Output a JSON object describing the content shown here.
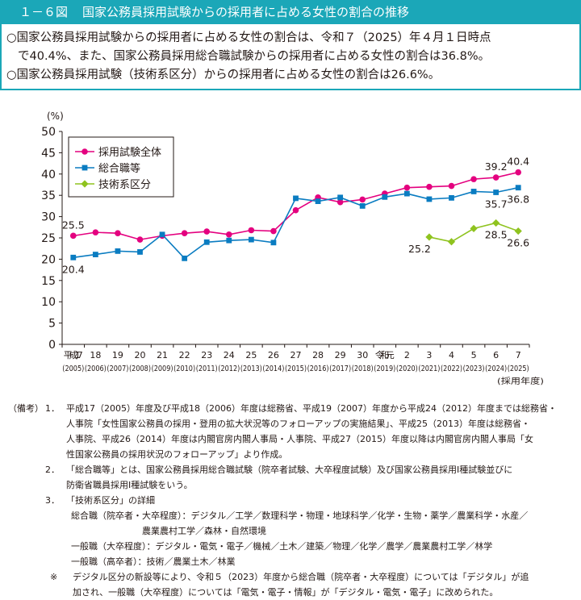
{
  "header": {
    "figure_number": "１－６図",
    "title": "国家公務員採用試験からの採用者に占める女性の割合の推移"
  },
  "summary": {
    "line1": "○国家公務員採用試験からの採用者に占める女性の割合は、令和７（2025）年４月１日時点",
    "line2": "で40.4%、また、国家公務員採用総合職試験からの採用者に占める女性の割合は36.8%。",
    "line3": "○国家公務員採用試験（技術系区分）からの採用者に占める女性の割合は26.6%。"
  },
  "chart_data": {
    "type": "line",
    "y_unit": "(%)",
    "ylim": [
      0,
      50
    ],
    "yticks": [
      0,
      5,
      10,
      15,
      20,
      25,
      30,
      35,
      40,
      45,
      50
    ],
    "x_label": "(採用年度)",
    "categories": [
      {
        "era": "平成17",
        "year": "(2005)"
      },
      {
        "era": "18",
        "year": "(2006)"
      },
      {
        "era": "19",
        "year": "(2007)"
      },
      {
        "era": "20",
        "year": "(2008)"
      },
      {
        "era": "21",
        "year": "(2009)"
      },
      {
        "era": "22",
        "year": "(2010)"
      },
      {
        "era": "23",
        "year": "(2011)"
      },
      {
        "era": "24",
        "year": "(2012)"
      },
      {
        "era": "25",
        "year": "(2013)"
      },
      {
        "era": "26",
        "year": "(2014)"
      },
      {
        "era": "27",
        "year": "(2015)"
      },
      {
        "era": "28",
        "year": "(2016)"
      },
      {
        "era": "29",
        "year": "(2017)"
      },
      {
        "era": "30",
        "year": "(2018)"
      },
      {
        "era": "令和元",
        "year": "(2019)"
      },
      {
        "era": "2",
        "year": "(2020)"
      },
      {
        "era": "3",
        "year": "(2021)"
      },
      {
        "era": "4",
        "year": "(2022)"
      },
      {
        "era": "5",
        "year": "(2023)"
      },
      {
        "era": "6",
        "year": "(2024)"
      },
      {
        "era": "7",
        "year": "(2025)"
      }
    ],
    "series": [
      {
        "name": "採用試験全体",
        "color": "#e4007f",
        "marker": "circle",
        "values": [
          25.5,
          26.3,
          26.1,
          24.6,
          25.5,
          26.1,
          26.5,
          25.8,
          26.8,
          26.6,
          31.5,
          34.5,
          33.4,
          34.0,
          35.4,
          36.8,
          37.0,
          37.2,
          38.8,
          39.2,
          40.4
        ]
      },
      {
        "name": "総合職等",
        "color": "#0a7cc1",
        "marker": "square",
        "values": [
          20.4,
          21.1,
          21.9,
          21.7,
          25.8,
          20.2,
          24.0,
          24.4,
          24.6,
          23.9,
          34.3,
          33.6,
          34.5,
          32.5,
          34.6,
          35.4,
          34.1,
          34.4,
          35.9,
          35.7,
          36.8
        ]
      },
      {
        "name": "技術系区分",
        "color": "#8fc31f",
        "marker": "diamond",
        "values": [
          null,
          null,
          null,
          null,
          null,
          null,
          null,
          null,
          null,
          null,
          null,
          null,
          null,
          null,
          null,
          null,
          25.2,
          24.1,
          27.2,
          28.5,
          26.6
        ]
      }
    ],
    "data_labels": [
      {
        "series": 0,
        "index": 0,
        "text": "25.5",
        "pos": "above"
      },
      {
        "series": 1,
        "index": 0,
        "text": "20.4",
        "pos": "below"
      },
      {
        "series": 0,
        "index": 19,
        "text": "39.2",
        "pos": "above"
      },
      {
        "series": 0,
        "index": 20,
        "text": "40.4",
        "pos": "above"
      },
      {
        "series": 1,
        "index": 20,
        "text": "36.8",
        "pos": "below"
      },
      {
        "series": 1,
        "index": 19,
        "text": "35.7",
        "pos": "below"
      },
      {
        "series": 2,
        "index": 16,
        "text": "25.2",
        "pos": "belowleft"
      },
      {
        "series": 2,
        "index": 19,
        "text": "28.5",
        "pos": "below"
      },
      {
        "series": 2,
        "index": 20,
        "text": "26.6",
        "pos": "below"
      }
    ],
    "legend_position": "top-left",
    "grid": false
  },
  "notes": {
    "head": "（備考）",
    "n1_num": "1．",
    "n1_l1": "平成17（2005）年度及び平成18（2006）年度は総務省、平成19（2007）年度から平成24（2012）年度までは総務省・",
    "n1_l2": "人事院「女性国家公務員の採用・登用の拡大状況等のフォローアップの実施結果」、平成25（2013）年度は総務省・",
    "n1_l3": "人事院、平成26（2014）年度は内閣官房内閣人事局・人事院、平成27（2015）年度以降は内閣官房内閣人事局「女",
    "n1_l4": "性国家公務員の採用状況のフォローアップ」より作成。",
    "n2_num": "2．",
    "n2_l1": "「総合職等」とは、国家公務員採用総合職試験（院卒者試験、大卒程度試験）及び国家公務員採用Ⅰ種試験並びに",
    "n2_l2": "防衛省職員採用Ⅰ種試験をいう。",
    "n3_num": "3．",
    "n3_l1": "「技術系区分」の詳細",
    "n3_l2": "総合職（院卒者・大卒程度）：デジタル／工学／数理科学・物理・地球科学／化学・生物・薬学／農業科学・水産／",
    "n3_l3": "農業農村工学／森林・自然環境",
    "n3_l4": "一般職（大卒程度）：デジタル・電気・電子／機械／土木／建築／物理／化学／農学／農業農村工学／林学",
    "n3_l5": "一般職（高卒者）：技術／農業土木／林業",
    "star_mark": "※",
    "star_l1": "デジタル区分の新設等により、令和５（2023）年度から総合職（院卒者・大卒程度）については「デジタル」が追",
    "star_l2": "加され、一般職（大卒程度）については「電気・電子・情報」が「デジタル・電気・電子」に改められた。"
  }
}
